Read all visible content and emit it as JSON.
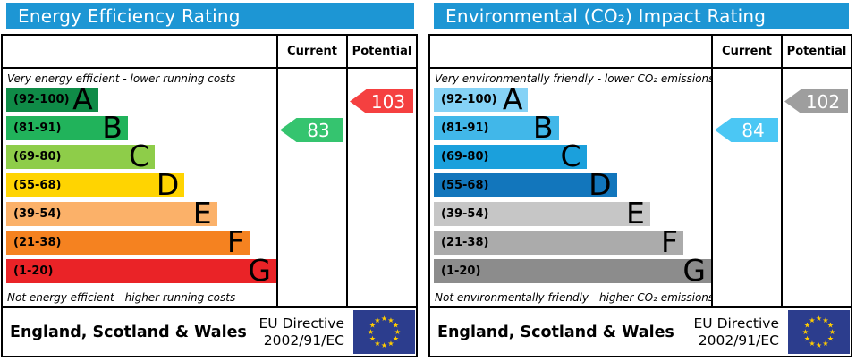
{
  "colors": {
    "header_bar": "#1d96d4",
    "flag_blue": "#2c3d8d",
    "flag_star": "#ffcc00",
    "border": "#000000"
  },
  "chart_data": [
    {
      "type": "bar",
      "title": "Energy Efficiency Rating",
      "orientation": "horizontal",
      "categories": [
        "A (92-100)",
        "B (81-91)",
        "C (69-80)",
        "D (55-68)",
        "E (39-54)",
        "F (21-38)",
        "G (1-20)"
      ],
      "band_colors": [
        "#0f8b47",
        "#21b35b",
        "#8ecd49",
        "#ffd401",
        "#fbb169",
        "#f58220",
        "#ea2327"
      ],
      "bar_lengths_pct": [
        34,
        45,
        55,
        66,
        78,
        90,
        100
      ],
      "markers": [
        {
          "name": "Current",
          "value": 83,
          "band": "B",
          "color": "#35c46f"
        },
        {
          "name": "Potential",
          "value": 103,
          "band": "A",
          "color": "#f54040"
        }
      ],
      "top_annotation": "Very energy efficient - lower running costs",
      "bottom_annotation": "Not energy efficient - higher running costs",
      "footer": "England, Scotland & Wales | EU Directive 2002/91/EC"
    },
    {
      "type": "bar",
      "title": "Environmental (CO₂) Impact Rating",
      "orientation": "horizontal",
      "categories": [
        "A (92-100)",
        "B (81-91)",
        "C (69-80)",
        "D (55-68)",
        "E (39-54)",
        "F (21-38)",
        "G (1-20)"
      ],
      "band_colors": [
        "#85d2f6",
        "#41b7e9",
        "#1ba0dc",
        "#1276bc",
        "#c6c6c6",
        "#ababab",
        "#8c8c8c"
      ],
      "bar_lengths_pct": [
        34,
        45,
        55,
        66,
        78,
        90,
        100
      ],
      "markers": [
        {
          "name": "Current",
          "value": 84,
          "band": "B",
          "color": "#4bc7f4"
        },
        {
          "name": "Potential",
          "value": 102,
          "band": "A",
          "color": "#9e9e9e"
        }
      ],
      "top_annotation": "Very environmentally friendly - lower CO₂ emissions",
      "bottom_annotation": "Not environmentally friendly - higher CO₂ emissions",
      "footer": "England, Scotland & Wales | EU Directive 2002/91/EC"
    }
  ],
  "panels": [
    {
      "title": "Energy Efficiency Rating",
      "col_current": "Current",
      "col_potential": "Potential",
      "top_caption": "Very energy efficient - lower running costs",
      "bottom_caption": "Not energy efficient - higher running costs",
      "bands": [
        {
          "grade": "A",
          "range": "(92-100)",
          "color": "#0f8b47",
          "width": "34%"
        },
        {
          "grade": "B",
          "range": "(81-91)",
          "color": "#21b35b",
          "width": "45%"
        },
        {
          "grade": "C",
          "range": "(69-80)",
          "color": "#8ecd49",
          "width": "55%"
        },
        {
          "grade": "D",
          "range": "(55-68)",
          "color": "#ffd401",
          "width": "66%"
        },
        {
          "grade": "E",
          "range": "(39-54)",
          "color": "#fbb169",
          "width": "78%"
        },
        {
          "grade": "F",
          "range": "(21-38)",
          "color": "#f58220",
          "width": "90%"
        },
        {
          "grade": "G",
          "range": "(1-20)",
          "color": "#ea2327",
          "width": "100%"
        }
      ],
      "current": {
        "value": "83",
        "band": "B",
        "color": "#35c46f"
      },
      "potential": {
        "value": "103",
        "band": "A",
        "color": "#f54040"
      },
      "footer_region": "England, Scotland & Wales",
      "footer_directive_1": "EU Directive",
      "footer_directive_2": "2002/91/EC"
    },
    {
      "title": "Environmental (CO₂) Impact Rating",
      "col_current": "Current",
      "col_potential": "Potential",
      "top_caption": "Very environmentally friendly - lower CO₂ emissions",
      "bottom_caption": "Not environmentally friendly - higher CO₂ emissions",
      "bands": [
        {
          "grade": "A",
          "range": "(92-100)",
          "color": "#85d2f6",
          "width": "34%"
        },
        {
          "grade": "B",
          "range": "(81-91)",
          "color": "#41b7e9",
          "width": "45%"
        },
        {
          "grade": "C",
          "range": "(69-80)",
          "color": "#1ba0dc",
          "width": "55%"
        },
        {
          "grade": "D",
          "range": "(55-68)",
          "color": "#1276bc",
          "width": "66%"
        },
        {
          "grade": "E",
          "range": "(39-54)",
          "color": "#c6c6c6",
          "width": "78%"
        },
        {
          "grade": "F",
          "range": "(21-38)",
          "color": "#ababab",
          "width": "90%"
        },
        {
          "grade": "G",
          "range": "(1-20)",
          "color": "#8c8c8c",
          "width": "100%"
        }
      ],
      "current": {
        "value": "84",
        "band": "B",
        "color": "#4bc7f4"
      },
      "potential": {
        "value": "102",
        "band": "A",
        "color": "#9e9e9e"
      },
      "footer_region": "England, Scotland & Wales",
      "footer_directive_1": "EU Directive",
      "footer_directive_2": "2002/91/EC"
    }
  ]
}
